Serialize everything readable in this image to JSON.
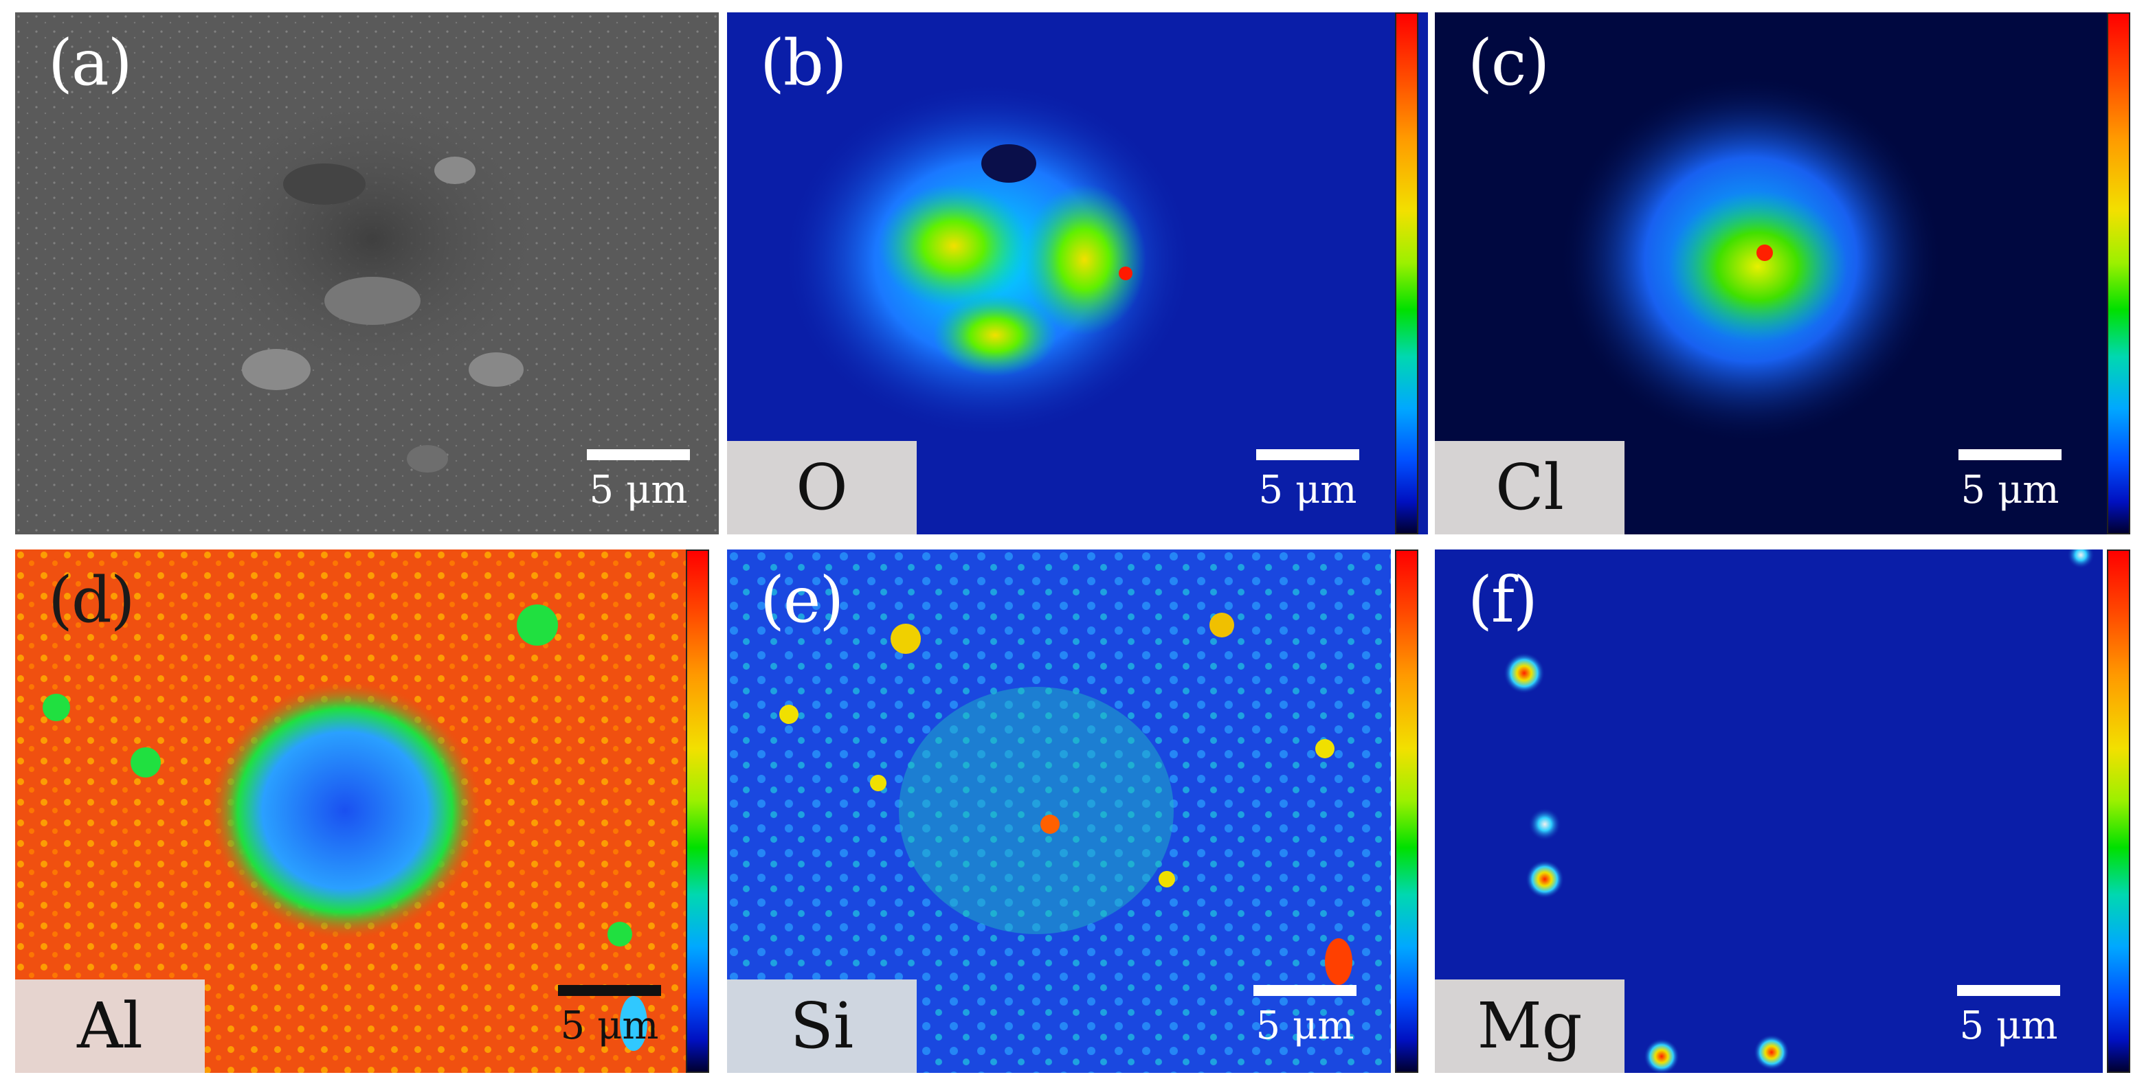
{
  "panels": {
    "a": {
      "label": "(a)",
      "scale": "5 μm"
    },
    "b": {
      "label": "(b)",
      "element": "O",
      "scale": "5 μm"
    },
    "c": {
      "label": "(c)",
      "element": "Cl",
      "scale": "5 μm"
    },
    "d": {
      "label": "(d)",
      "element": "Al",
      "scale": "5 μm"
    },
    "e": {
      "label": "(e)",
      "element": "Si",
      "scale": "5 μm"
    },
    "f": {
      "label": "(f)",
      "element": "Mg",
      "scale": "5 μm"
    }
  },
  "colors": {
    "sem_gray": "#5a5a5a",
    "map_background_blue": "#0a1ea8",
    "al_background": "#f05010",
    "colorbar_high": "#ff0000",
    "colorbar_low": "#000030"
  }
}
